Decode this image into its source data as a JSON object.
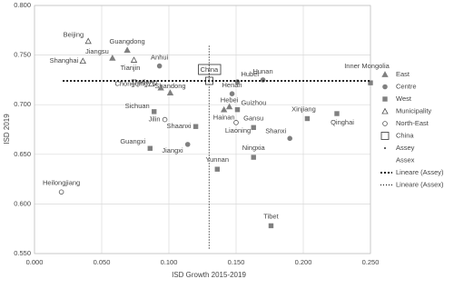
{
  "chart_data": {
    "type": "scatter",
    "x_label": "ISD Growth 2015-2019",
    "y_label": "ISD 2019",
    "xlim": [
      0,
      0.25
    ],
    "ylim": [
      0.55,
      0.8
    ],
    "grid": true,
    "legend": "right",
    "xticks": [
      {
        "value": 0,
        "label": "0.000"
      },
      {
        "value": 0.05,
        "label": "0.050"
      },
      {
        "value": 0.1,
        "label": "0.100"
      },
      {
        "value": 0.15,
        "label": "0.150"
      },
      {
        "value": 0.2,
        "label": "0.200"
      },
      {
        "value": 0.25,
        "label": "0.250"
      }
    ],
    "yticks": [
      {
        "value": 0.55,
        "label": "0.550"
      },
      {
        "value": 0.6,
        "label": "0.600"
      },
      {
        "value": 0.65,
        "label": "0.650"
      },
      {
        "value": 0.7,
        "label": "0.700"
      },
      {
        "value": 0.75,
        "label": "0.750"
      },
      {
        "value": 0.8,
        "label": "0.800"
      }
    ],
    "series": [
      {
        "name": "East",
        "marker": "triangle",
        "color": "#808080",
        "labels": [
          "Guangdong",
          "Jiangsu",
          "Shandong",
          "Zhejiang",
          "Hebei",
          "Hainan"
        ],
        "x": [
          0.069,
          0.058,
          0.101,
          0.094,
          0.145,
          0.141
        ],
        "values": [
          0.755,
          0.747,
          0.712,
          0.717,
          0.698,
          0.695
        ]
      },
      {
        "name": "Centre",
        "marker": "circle",
        "color": "#808080",
        "labels": [
          "Anhui",
          "Hubei",
          "Hunan",
          "Henan",
          "Shanxi",
          "Jiangxi"
        ],
        "x": [
          0.093,
          0.151,
          0.17,
          0.147,
          0.19,
          0.114
        ],
        "values": [
          0.739,
          0.723,
          0.725,
          0.711,
          0.666,
          0.66
        ]
      },
      {
        "name": "West",
        "marker": "square",
        "color": "#808080",
        "labels": [
          "Inner Mongolia",
          "Guizhou",
          "Sichuan",
          "Shaanxi",
          "Xinjiang",
          "Qinghai",
          "Gansu",
          "Guangxi",
          "Ningxia",
          "Yunnan",
          "Tibet"
        ],
        "x": [
          0.25,
          0.151,
          0.089,
          0.12,
          0.203,
          0.225,
          0.163,
          0.086,
          0.163,
          0.136,
          0.176
        ],
        "values": [
          0.722,
          0.695,
          0.693,
          0.678,
          0.686,
          0.691,
          0.677,
          0.656,
          0.647,
          0.635,
          0.578
        ]
      },
      {
        "name": "Municipality",
        "marker": "open-triangle",
        "color": "#555555",
        "labels": [
          "Beijing",
          "Shanghai",
          "Tianjin",
          "Chongqing"
        ],
        "x": [
          0.04,
          0.036,
          0.074,
          0.087
        ],
        "values": [
          0.764,
          0.744,
          0.745,
          0.721
        ]
      },
      {
        "name": "North-East",
        "marker": "open-circle",
        "color": "#555555",
        "labels": [
          "Jilin",
          "Liaoning",
          "Heilongjiang"
        ],
        "x": [
          0.097,
          0.15,
          0.02
        ],
        "values": [
          0.685,
          0.682,
          0.612
        ]
      },
      {
        "name": "China",
        "marker": "open-square",
        "color": "#333333",
        "labels": [
          "China"
        ],
        "x": [
          0.13
        ],
        "values": [
          0.724
        ]
      },
      {
        "name": "Assey",
        "marker": "dot",
        "color": "#333333",
        "labels": [],
        "x": [],
        "values": []
      },
      {
        "name": "Assex",
        "marker": "none",
        "color": "#333333",
        "labels": [],
        "x": [],
        "values": []
      },
      {
        "name": "Lineare (Assey)",
        "marker": "line-thick",
        "color": "#222222",
        "labels": [],
        "x": [
          0.021,
          0.25
        ],
        "values": [
          0.724,
          0.724
        ]
      },
      {
        "name": "Lineare (Assex)",
        "marker": "line-thin",
        "color": "#222222",
        "labels": [],
        "x": [
          0.13,
          0.13
        ],
        "values": [
          0.555,
          0.76
        ]
      }
    ]
  }
}
